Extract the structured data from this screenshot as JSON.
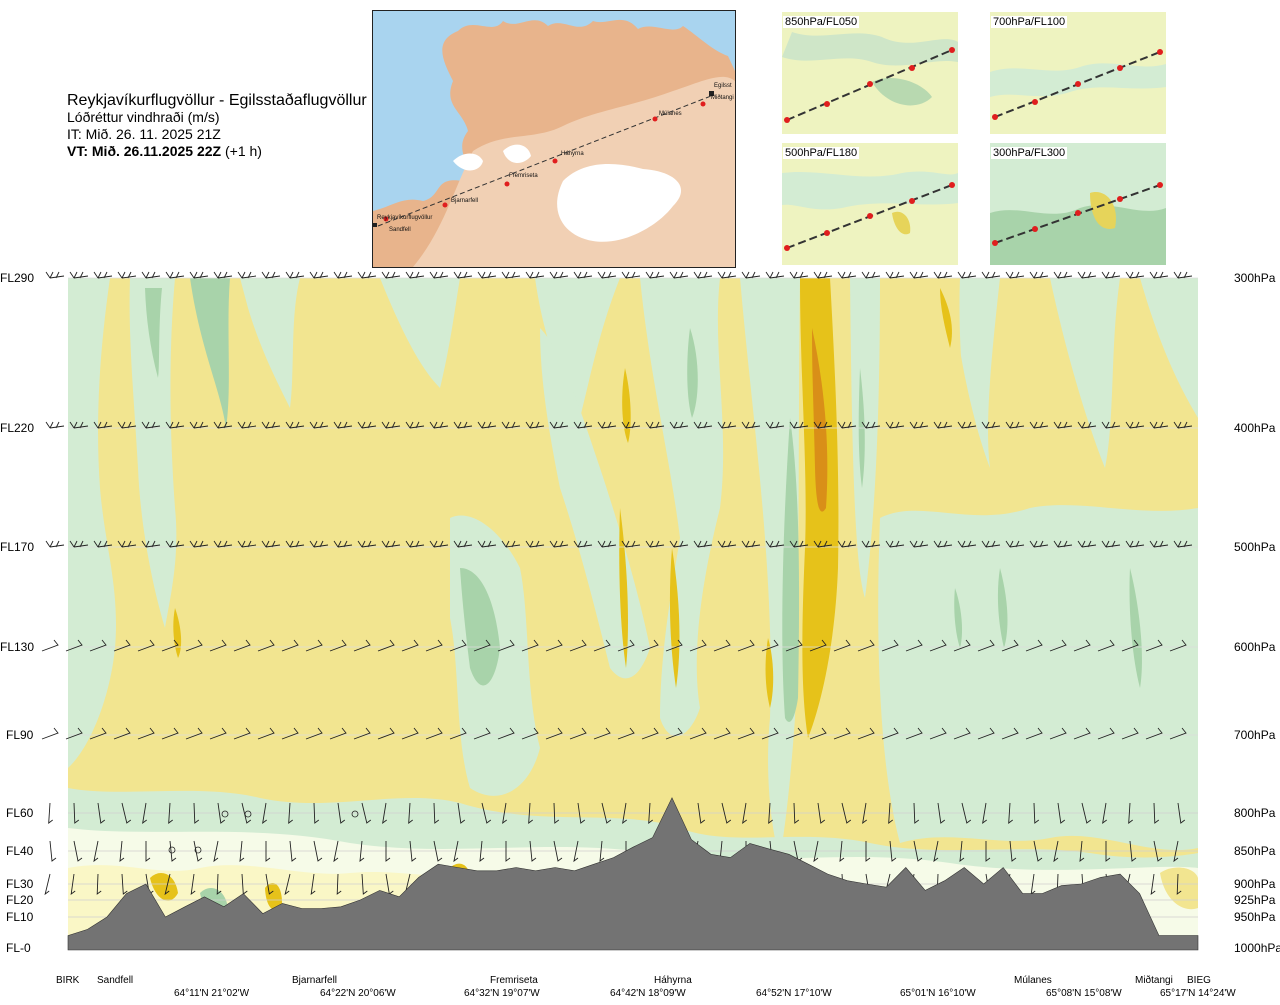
{
  "title": {
    "route": "Reykjavíkurflugvöllur - Egilsstaðaflugvöllur",
    "parameter": "Lóðréttur vindhraði (m/s)",
    "it": "IT: Mið. 26. 11. 2025 21Z",
    "vt_bold": "VT: Mið. 26.11.2025 22Z",
    "vt_rest": " (+1 h)"
  },
  "map": {
    "labels": [
      "Egilsst",
      "Miðtangi",
      "Múlanes",
      "Háhyrna",
      "Fremriseta",
      "Bjarnarfell",
      "Reykjavíkurflugvöllur",
      "Sandfell"
    ]
  },
  "thumbnails": [
    {
      "label": "850hPa/FL050"
    },
    {
      "label": "700hPa/FL100"
    },
    {
      "label": "500hPa/FL180"
    },
    {
      "label": "300hPa/FL300"
    }
  ],
  "colors": {
    "strong_up": "#e6c21a",
    "up": "#f2e590",
    "weak_up": "#faf7c6",
    "neutral": "#f6fbe8",
    "weak_down": "#d3ecd3",
    "down": "#a8d3aa",
    "strong_down": "#6aa87a",
    "terrain": "#737373",
    "peak_up": "#d98f18"
  },
  "chart_data": {
    "type": "heatmap",
    "title": "Lóðréttur vindhraði (m/s)",
    "flight_levels": [
      {
        "label": "FL290",
        "hpa": "300hPa"
      },
      {
        "label": "FL220",
        "hpa": "400hPa"
      },
      {
        "label": "FL170",
        "hpa": "500hPa"
      },
      {
        "label": "FL130",
        "hpa": "600hPa"
      },
      {
        "label": "FL90",
        "hpa": "700hPa"
      },
      {
        "label": "FL60",
        "hpa": "800hPa"
      },
      {
        "label": "FL40",
        "hpa": "850hPa"
      },
      {
        "label": "FL30",
        "hpa": "900hPa"
      },
      {
        "label": "FL20",
        "hpa": "925hPa"
      },
      {
        "label": "FL10",
        "hpa": "950hPa"
      },
      {
        "label": "FL-0",
        "hpa": "1000hPa"
      }
    ],
    "waypoints": [
      "BIRK",
      "Sandfell",
      "Bjarnarfell",
      "Fremriseta",
      "Háhyrna",
      "Múlanes",
      "Miðtangi",
      "BIEG"
    ],
    "coordinates": [
      "64°11'N 21°02'W",
      "64°22'N 20°06'W",
      "64°32'N 19°07'W",
      "64°42'N 18°09'W",
      "64°52'N 17°10'W",
      "65°01'N 16°10'W",
      "65°08'N 15°08'W",
      "65°17'N 14°24'W"
    ],
    "terrain_profile_fl": [
      0.4,
      0.6,
      1.0,
      2.4,
      3.0,
      1.0,
      1.6,
      2.2,
      1.6,
      2.4,
      1.2,
      1.8,
      1.5,
      1.5,
      1.6,
      2.0,
      2.6,
      2.2,
      3.2,
      3.6,
      3.5,
      3.4,
      3.4,
      3.5,
      3.4,
      3.5,
      3.4,
      3.6,
      3.8,
      4.2,
      4.7,
      6.8,
      4.6,
      3.9,
      3.8,
      4.4,
      4.1,
      3.9,
      3.6,
      3.3,
      3.1,
      3.0,
      2.8,
      3.5,
      2.6,
      3.1,
      3.5,
      3.0,
      3.5,
      2.4,
      2.4,
      2.9,
      3.0,
      3.2,
      3.3,
      2.4,
      0.4,
      0.4,
      0.4
    ]
  }
}
